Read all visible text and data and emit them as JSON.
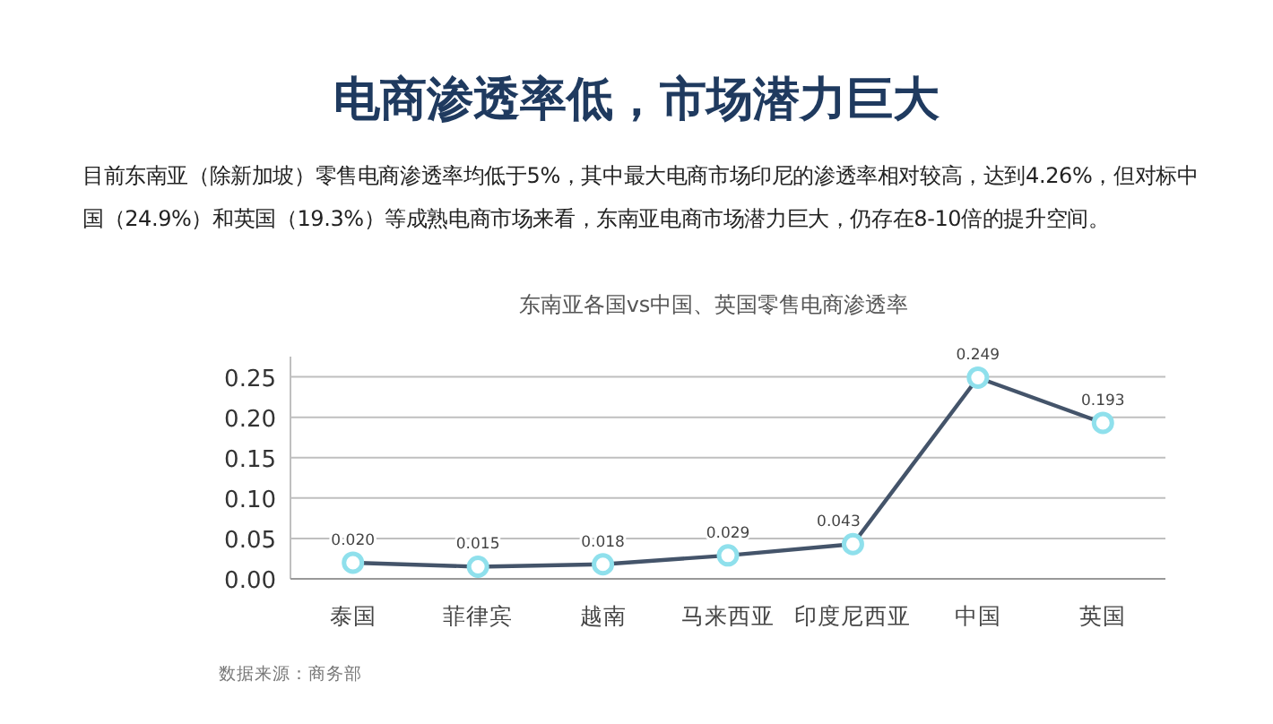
{
  "chart_data": {
    "type": "line",
    "title": "电商渗透率低，市场潜力巨大",
    "subtitle": "目前东南亚（除新加坡）零售电商渗透率均低于5%，其中最大电商市场印尼的渗透率相对较高，达到4.26%，但对标中国（24.9%）和英国（19.3%）等成熟电商市场来看，东南亚电商市场潜力巨大，仍存在8-10倍的提升空间。",
    "annotations": [
      "东南亚各国vs中国、英国零售电商渗透率",
      "数据来源：商务部"
    ],
    "categories": [
      "泰国",
      "菲律宾",
      "越南",
      "马来西亚",
      "印度尼西亚",
      "中国",
      "英国"
    ],
    "series": [
      {
        "color": "#44546a",
        "values": [
          0.02,
          0.015,
          0.018,
          0.029,
          0.043,
          0.249,
          0.193
        ],
        "value_labels": [
          "0.020",
          "0.015",
          "0.018",
          "0.029",
          "0.043",
          "0.249",
          "0.193"
        ]
      }
    ],
    "ylim": [
      0,
      0.275
    ],
    "yticks": [
      {
        "value": 0,
        "label": "0.00"
      },
      {
        "value": 0.05,
        "label": "0.05"
      },
      {
        "value": 0.1,
        "label": "0.10"
      },
      {
        "value": 0.15,
        "label": "0.15"
      },
      {
        "value": 0.2,
        "label": "0.20"
      },
      {
        "value": 0.25,
        "label": "0.25"
      }
    ],
    "grid": "y",
    "marker": "circle",
    "line_style": "solid"
  }
}
